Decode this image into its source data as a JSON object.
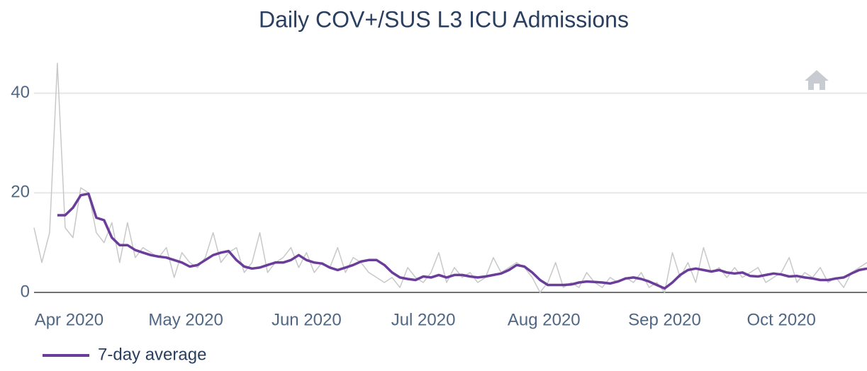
{
  "chart_data": {
    "type": "line",
    "title": "Daily COV+/SUS L3 ICU Admissions",
    "x": [
      "2020-03-23",
      "2020-03-25",
      "2020-03-27",
      "2020-03-29",
      "2020-03-31",
      "2020-04-02",
      "2020-04-04",
      "2020-04-06",
      "2020-04-08",
      "2020-04-10",
      "2020-04-12",
      "2020-04-14",
      "2020-04-16",
      "2020-04-18",
      "2020-04-20",
      "2020-04-22",
      "2020-04-24",
      "2020-04-26",
      "2020-04-28",
      "2020-04-30",
      "2020-05-02",
      "2020-05-04",
      "2020-05-06",
      "2020-05-08",
      "2020-05-10",
      "2020-05-12",
      "2020-05-14",
      "2020-05-16",
      "2020-05-18",
      "2020-05-20",
      "2020-05-22",
      "2020-05-24",
      "2020-05-26",
      "2020-05-28",
      "2020-05-30",
      "2020-06-01",
      "2020-06-03",
      "2020-06-05",
      "2020-06-07",
      "2020-06-09",
      "2020-06-11",
      "2020-06-13",
      "2020-06-15",
      "2020-06-17",
      "2020-06-19",
      "2020-06-21",
      "2020-06-23",
      "2020-06-25",
      "2020-06-27",
      "2020-06-29",
      "2020-07-01",
      "2020-07-03",
      "2020-07-05",
      "2020-07-07",
      "2020-07-09",
      "2020-07-11",
      "2020-07-13",
      "2020-07-15",
      "2020-07-17",
      "2020-07-19",
      "2020-07-21",
      "2020-07-23",
      "2020-07-25",
      "2020-07-27",
      "2020-07-29",
      "2020-07-31",
      "2020-08-02",
      "2020-08-04",
      "2020-08-06",
      "2020-08-08",
      "2020-08-10",
      "2020-08-12",
      "2020-08-14",
      "2020-08-16",
      "2020-08-18",
      "2020-08-20",
      "2020-08-22",
      "2020-08-24",
      "2020-08-26",
      "2020-08-28",
      "2020-08-30",
      "2020-09-01",
      "2020-09-03",
      "2020-09-05",
      "2020-09-07",
      "2020-09-09",
      "2020-09-11",
      "2020-09-13",
      "2020-09-15",
      "2020-09-17",
      "2020-09-19",
      "2020-09-21",
      "2020-09-23",
      "2020-09-25",
      "2020-09-27",
      "2020-09-29",
      "2020-10-01",
      "2020-10-03",
      "2020-10-05",
      "2020-10-07",
      "2020-10-09",
      "2020-10-11",
      "2020-10-13",
      "2020-10-15",
      "2020-10-17",
      "2020-10-19",
      "2020-10-21",
      "2020-10-23"
    ],
    "series": [
      {
        "color": "#c8c8c8",
        "values": [
          13,
          6,
          12,
          46,
          13,
          11,
          21,
          20,
          12,
          10,
          14,
          6,
          14,
          7,
          9,
          8,
          7,
          9,
          3,
          8,
          6,
          5,
          7,
          12,
          6,
          8,
          9,
          4,
          6,
          12,
          4,
          6,
          7,
          9,
          5,
          8,
          4,
          6,
          5,
          9,
          4,
          7,
          6,
          4,
          3,
          2,
          3,
          1,
          5,
          3,
          2,
          4,
          8,
          2,
          5,
          3,
          4,
          2,
          3,
          7,
          4,
          5,
          6,
          5,
          3,
          0,
          2,
          6,
          1,
          2,
          1,
          4,
          2,
          1,
          3,
          2,
          3,
          2,
          4,
          1,
          2,
          0,
          8,
          3,
          6,
          2,
          9,
          4,
          5,
          3,
          5,
          3,
          4,
          5,
          2,
          3,
          4,
          7,
          2,
          4,
          3,
          5,
          2,
          3,
          1,
          4,
          5,
          6
        ]
      },
      {
        "name": "7-day average",
        "color": "#6a3d9a",
        "values": [
          null,
          null,
          null,
          15.5,
          15.5,
          17,
          19.5,
          19.8,
          15,
          14.5,
          11,
          9.5,
          9.5,
          8.5,
          8,
          7.5,
          7.2,
          7,
          6.5,
          6,
          5.2,
          5.5,
          6.5,
          7.5,
          8,
          8.3,
          6.5,
          5.2,
          4.8,
          5,
          5.5,
          6,
          6,
          6.5,
          7.5,
          6.5,
          6,
          5.8,
          5,
          4.5,
          5,
          5.5,
          6.2,
          6.5,
          6.5,
          5.5,
          4,
          3,
          2.7,
          2.5,
          3.2,
          3,
          3.5,
          3,
          3.5,
          3.5,
          3.2,
          3,
          3.2,
          3.5,
          3.8,
          4.5,
          5.5,
          5.2,
          4,
          2.5,
          1.5,
          1.5,
          1.5,
          1.6,
          2,
          2.2,
          2.1,
          2,
          1.8,
          2.2,
          2.8,
          3,
          2.7,
          2.2,
          1.5,
          0.8,
          2,
          3.5,
          4.5,
          4.8,
          4.5,
          4.2,
          4.5,
          4,
          3.8,
          4,
          3.3,
          3.2,
          3.5,
          3.8,
          3.6,
          3.2,
          3.3,
          3,
          2.8,
          2.5,
          2.5,
          2.8,
          3,
          3.8,
          4.5,
          4.8
        ]
      }
    ],
    "xlim": [
      "2020-03-23",
      "2020-10-23"
    ],
    "xticks": [
      {
        "value": "2020-04-01",
        "label": "Apr 2020"
      },
      {
        "value": "2020-05-01",
        "label": "May 2020"
      },
      {
        "value": "2020-06-01",
        "label": "Jun 2020"
      },
      {
        "value": "2020-07-01",
        "label": "Jul 2020"
      },
      {
        "value": "2020-08-01",
        "label": "Aug 2020"
      },
      {
        "value": "2020-09-01",
        "label": "Sep 2020"
      },
      {
        "value": "2020-10-01",
        "label": "Oct 2020"
      }
    ],
    "ylim": [
      -1.7,
      46.2
    ],
    "yticks": [
      0,
      20,
      40
    ],
    "grid": true,
    "legend": "bottom-left"
  }
}
